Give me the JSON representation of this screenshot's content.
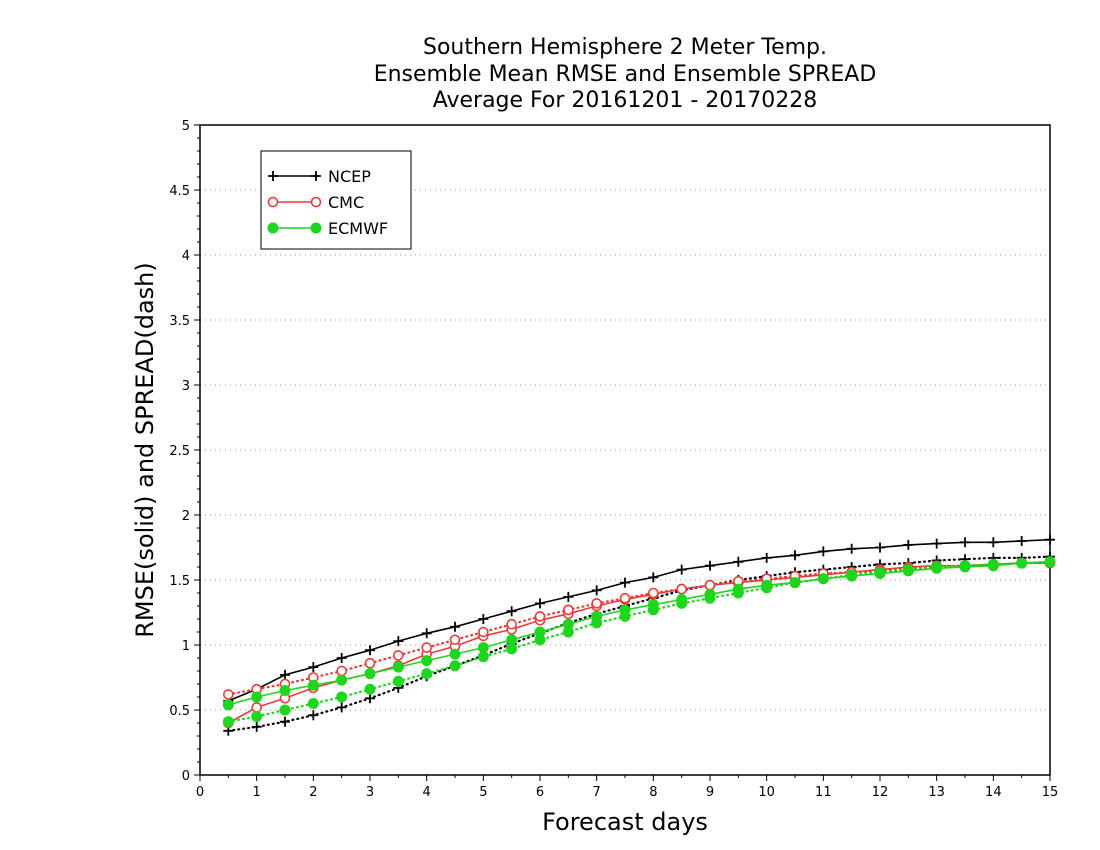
{
  "chart_data": {
    "type": "line",
    "title_lines": [
      "Southern Hemisphere 2 Meter Temp.",
      "Ensemble Mean RMSE and Ensemble SPREAD",
      "Average For 20161201 - 20170228"
    ],
    "xlabel": "Forecast days",
    "ylabel": "RMSE(solid) and SPREAD(dash)",
    "xlim": [
      0,
      15
    ],
    "ylim": [
      0,
      5
    ],
    "x_ticks": [
      "0",
      "1",
      "2",
      "3",
      "4",
      "5",
      "6",
      "7",
      "8",
      "9",
      "10",
      "11",
      "12",
      "13",
      "14",
      "15"
    ],
    "y_ticks": [
      "0",
      "0.5",
      "1",
      "1.5",
      "2",
      "2.5",
      "3",
      "3.5",
      "4",
      "4.5",
      "5"
    ],
    "grid": "horizontal dotted",
    "legend_placement": "top-left",
    "x": [
      0.5,
      1,
      1.5,
      2,
      2.5,
      3,
      3.5,
      4,
      4.5,
      5,
      5.5,
      6,
      6.5,
      7,
      7.5,
      8,
      8.5,
      9,
      9.5,
      10,
      10.5,
      11,
      11.5,
      12,
      12.5,
      13,
      13.5,
      14,
      14.5,
      15
    ],
    "series": [
      {
        "name": "NCEP",
        "metric": "RMSE",
        "style": "solid",
        "marker": "plus",
        "color": "#000000",
        "values": [
          0.57,
          0.66,
          0.77,
          0.83,
          0.9,
          0.96,
          1.03,
          1.09,
          1.14,
          1.2,
          1.26,
          1.32,
          1.37,
          1.42,
          1.48,
          1.52,
          1.58,
          1.61,
          1.64,
          1.67,
          1.69,
          1.72,
          1.74,
          1.75,
          1.77,
          1.78,
          1.79,
          1.79,
          1.8,
          1.81
        ]
      },
      {
        "name": "NCEP",
        "metric": "SPREAD",
        "style": "dash",
        "marker": "plus",
        "color": "#000000",
        "values": [
          0.34,
          0.37,
          0.41,
          0.46,
          0.52,
          0.59,
          0.67,
          0.76,
          0.84,
          0.92,
          1.01,
          1.09,
          1.17,
          1.24,
          1.3,
          1.36,
          1.42,
          1.46,
          1.5,
          1.53,
          1.56,
          1.58,
          1.6,
          1.62,
          1.63,
          1.65,
          1.66,
          1.67,
          1.67,
          1.68
        ]
      },
      {
        "name": "CMC",
        "metric": "RMSE",
        "style": "solid",
        "marker": "open-circle",
        "color": "#e83c3c",
        "values": [
          0.4,
          0.52,
          0.59,
          0.67,
          0.73,
          0.78,
          0.84,
          0.93,
          0.99,
          1.07,
          1.12,
          1.19,
          1.24,
          1.3,
          1.35,
          1.39,
          1.43,
          1.46,
          1.48,
          1.5,
          1.52,
          1.54,
          1.56,
          1.58,
          1.6,
          1.61,
          1.61,
          1.62,
          1.63,
          1.63
        ]
      },
      {
        "name": "CMC",
        "metric": "SPREAD",
        "style": "dash",
        "marker": "open-circle",
        "color": "#e83c3c",
        "values": [
          0.62,
          0.66,
          0.7,
          0.75,
          0.8,
          0.86,
          0.92,
          0.98,
          1.04,
          1.1,
          1.16,
          1.22,
          1.27,
          1.32,
          1.36,
          1.4,
          1.43,
          1.46,
          1.49,
          1.51,
          1.53,
          1.55,
          1.56,
          1.57,
          1.59,
          1.6,
          1.61,
          1.62,
          1.63,
          1.63
        ]
      },
      {
        "name": "ECMWF",
        "metric": "RMSE",
        "style": "solid",
        "marker": "filled-circle",
        "color": "#1dd61d",
        "values": [
          0.54,
          0.6,
          0.65,
          0.69,
          0.73,
          0.78,
          0.83,
          0.88,
          0.93,
          0.98,
          1.04,
          1.1,
          1.16,
          1.22,
          1.27,
          1.31,
          1.35,
          1.39,
          1.43,
          1.46,
          1.48,
          1.51,
          1.53,
          1.55,
          1.57,
          1.59,
          1.6,
          1.61,
          1.63,
          1.64
        ]
      },
      {
        "name": "ECMWF",
        "metric": "SPREAD",
        "style": "dash",
        "marker": "filled-circle",
        "color": "#1dd61d",
        "values": [
          0.41,
          0.45,
          0.5,
          0.55,
          0.6,
          0.66,
          0.72,
          0.78,
          0.84,
          0.91,
          0.97,
          1.04,
          1.1,
          1.17,
          1.22,
          1.27,
          1.32,
          1.36,
          1.4,
          1.44,
          1.48,
          1.51,
          1.54,
          1.56,
          1.58,
          1.6,
          1.61,
          1.62,
          1.63,
          1.64
        ]
      }
    ],
    "legend": [
      {
        "label": "NCEP",
        "marker": "plus",
        "color": "#000000"
      },
      {
        "label": "CMC",
        "marker": "open-circle",
        "color": "#e83c3c"
      },
      {
        "label": "ECMWF",
        "marker": "filled-circle",
        "color": "#1dd61d"
      }
    ]
  }
}
